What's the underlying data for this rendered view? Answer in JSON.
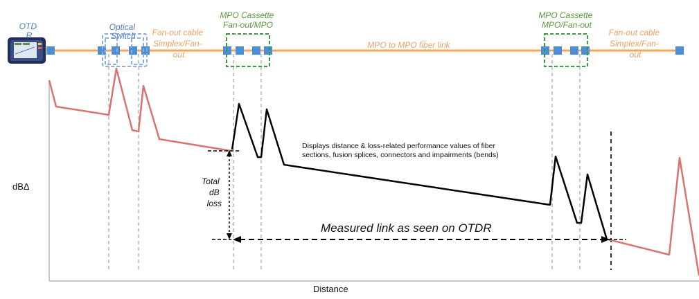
{
  "labels": {
    "otdr": [
      "OTD",
      "R"
    ],
    "optical_switch": [
      "Optical",
      "Switch"
    ],
    "fanout_left": [
      "Fan-out cable",
      "Simplex/Fan-",
      "out"
    ],
    "mpo_cassette_left": [
      "MPO Cassette",
      "Fan-out/MPO"
    ],
    "mpo_link": "MPO to MPO fiber link",
    "mpo_cassette_right": [
      "MPO Cassette",
      "MPO/Fan-out"
    ],
    "fanout_right": [
      "Fan-out cable",
      "Simplex/Fan-",
      "out"
    ],
    "description": [
      "Displays distance & loss-related performance values of fiber",
      "sections, fusion splices, connectors and impairments (bends)"
    ],
    "total_loss": [
      "Total",
      "dB",
      "loss"
    ],
    "measured_link": "Measured link as seen on OTDR",
    "y_axis": "dBΔ",
    "x_axis": "Distance"
  },
  "colors": {
    "fiber_line": "#f5a55a",
    "connector": "#4d8fd6",
    "switch_box": "#8aaee0",
    "cassette_box": "#3a9a3a",
    "trace_outside": "#d9736e",
    "trace_link": "#000000",
    "guide_line": "#b8b8b8",
    "axis": "#c8c8c8"
  },
  "icons": {
    "otdr_device": "otdr-device-icon"
  }
}
